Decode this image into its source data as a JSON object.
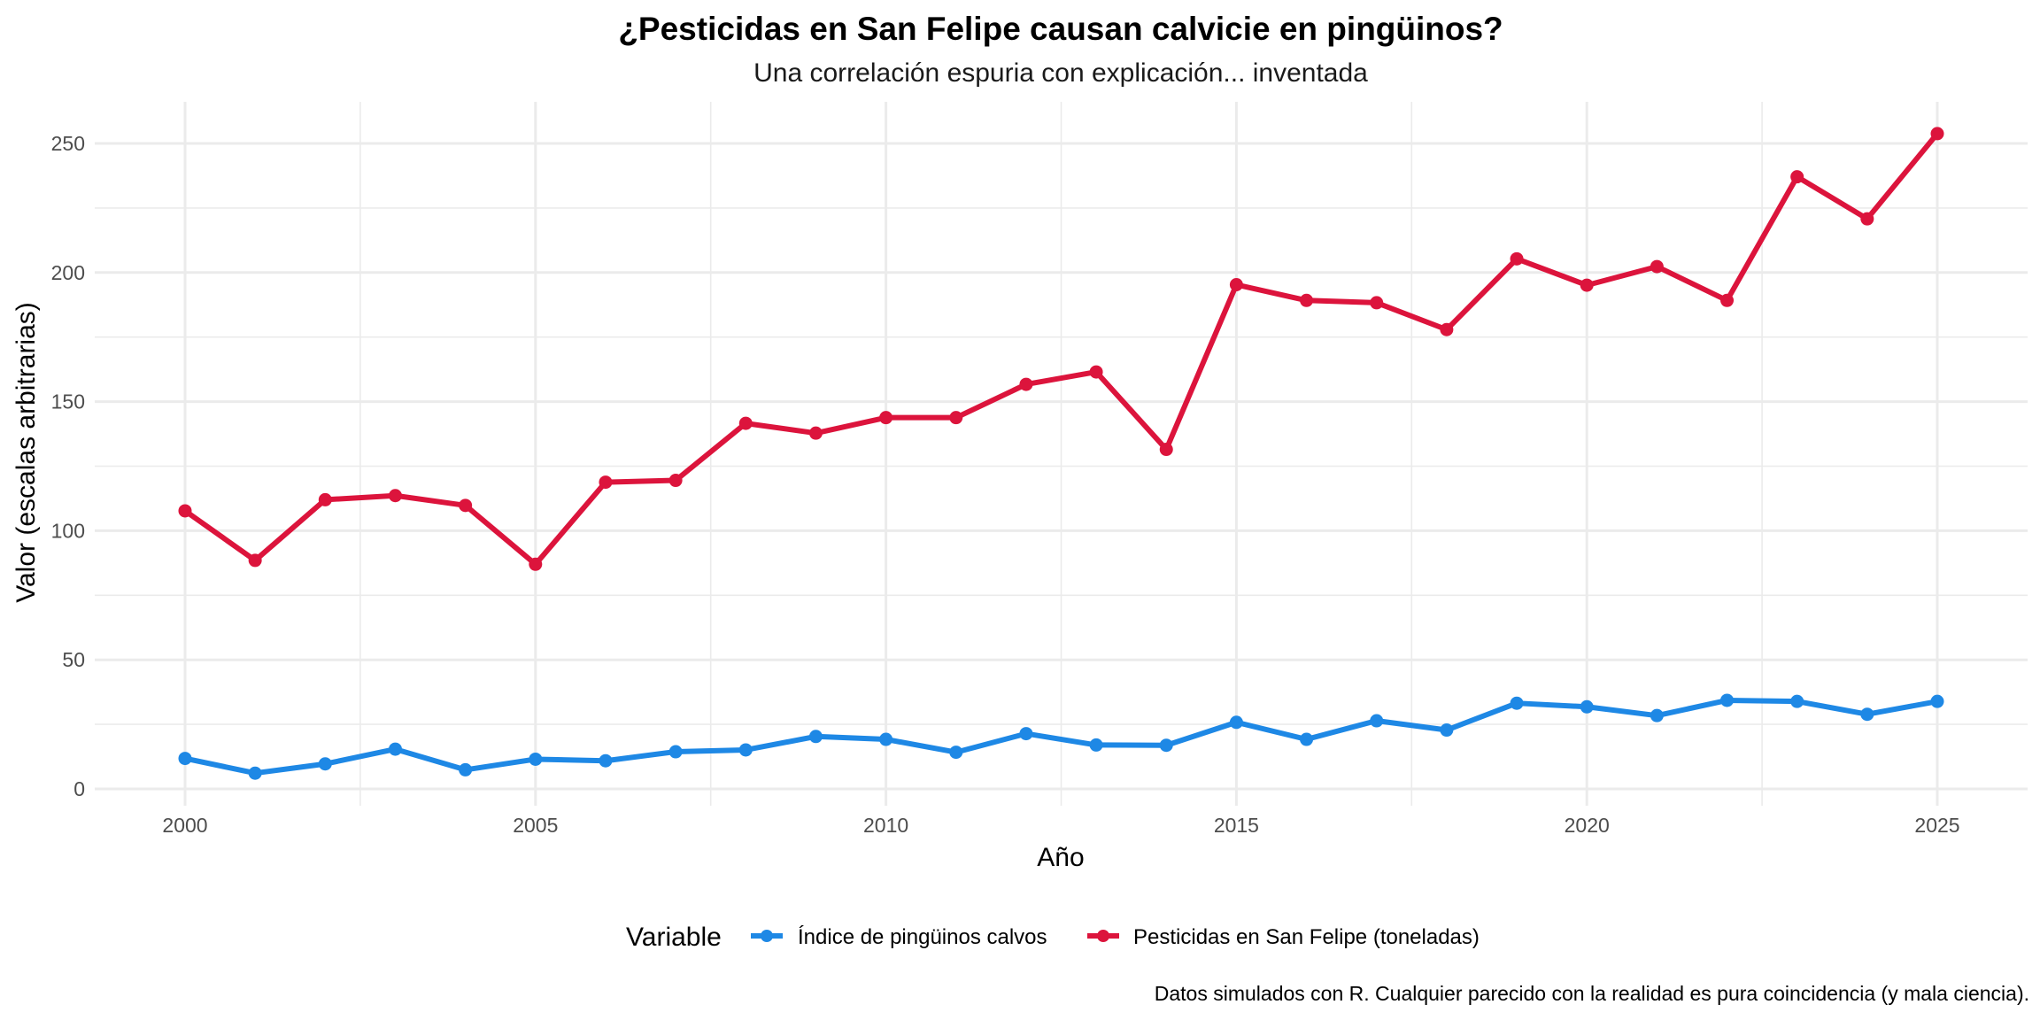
{
  "chart_data": {
    "type": "line",
    "title": "¿Pesticidas en San Felipe causan calvicie en pingüinos?",
    "subtitle": "Una correlación espuria con explicación... inventada",
    "xlabel": "Año",
    "ylabel": "Valor (escalas arbitrarias)",
    "caption": "Datos simulados con R. Cualquier parecido con la realidad es pura coincidencia (y mala ciencia).",
    "x": [
      2000,
      2001,
      2002,
      2003,
      2004,
      2005,
      2006,
      2007,
      2008,
      2009,
      2010,
      2011,
      2012,
      2013,
      2014,
      2015,
      2016,
      2017,
      2018,
      2019,
      2020,
      2021,
      2022,
      2023,
      2024,
      2025
    ],
    "xlim": [
      1997.5,
      2026.75
    ],
    "ylim": [
      -5,
      262
    ],
    "x_ticks": [
      "2000",
      "2005",
      "2010",
      "2015",
      "2020",
      "2025"
    ],
    "x_tick_values": [
      2000,
      2005,
      2010,
      2015,
      2020,
      2025
    ],
    "y_ticks": [
      "0",
      "50",
      "100",
      "150",
      "200",
      "250"
    ],
    "y_tick_values": [
      0,
      50,
      100,
      150,
      200,
      250
    ],
    "grid": true,
    "legend": {
      "title": "Variable",
      "position": "bottom"
    },
    "series": [
      {
        "name": "Índice de pingüinos calvos",
        "color": "#1e88e5",
        "values": [
          11.8,
          6.1,
          9.7,
          15.4,
          7.4,
          11.5,
          10.9,
          14.4,
          15.1,
          20.3,
          19.2,
          14.2,
          21.4,
          17.0,
          16.9,
          25.8,
          19.2,
          26.4,
          22.8,
          33.2,
          31.8,
          28.4,
          34.3,
          33.9,
          28.9,
          33.9
        ]
      },
      {
        "name": "Pesticidas en San Felipe (toneladas)",
        "color": "#dc143c",
        "values": [
          107.7,
          88.5,
          112.0,
          113.6,
          109.8,
          87.0,
          118.8,
          119.5,
          141.6,
          137.8,
          143.8,
          143.8,
          156.7,
          161.5,
          131.5,
          195.3,
          189.2,
          188.3,
          177.9,
          205.3,
          195.1,
          202.3,
          189.2,
          237.1,
          220.8,
          253.8
        ]
      }
    ]
  }
}
